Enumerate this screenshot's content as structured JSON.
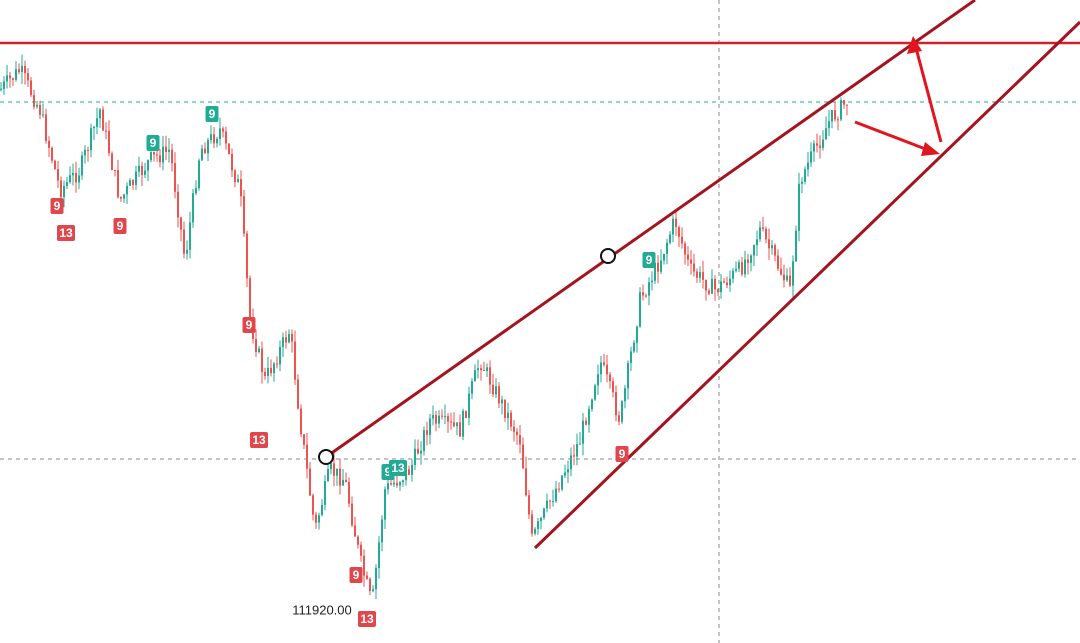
{
  "badges": [
    {
      "label": "9",
      "color": "#e0474c"
    },
    {
      "label": "13",
      "color": "#e0474c"
    },
    {
      "label": "9",
      "color": "#22ab94"
    },
    {
      "label": "9",
      "color": "#e0474c"
    },
    {
      "label": "9",
      "color": "#22ab94"
    },
    {
      "label": "9",
      "color": "#e0474c"
    },
    {
      "label": "13",
      "color": "#e0474c"
    },
    {
      "label": "9",
      "color": "#22ab94"
    },
    {
      "label": "13",
      "color": "#22ab94"
    },
    {
      "label": "9",
      "color": "#e0474c"
    },
    {
      "label": "13",
      "color": "#e0474c"
    },
    {
      "label": "9",
      "color": "#22ab94"
    },
    {
      "label": "9",
      "color": "#e0474c"
    }
  ],
  "price_label": "111920.00"
}
